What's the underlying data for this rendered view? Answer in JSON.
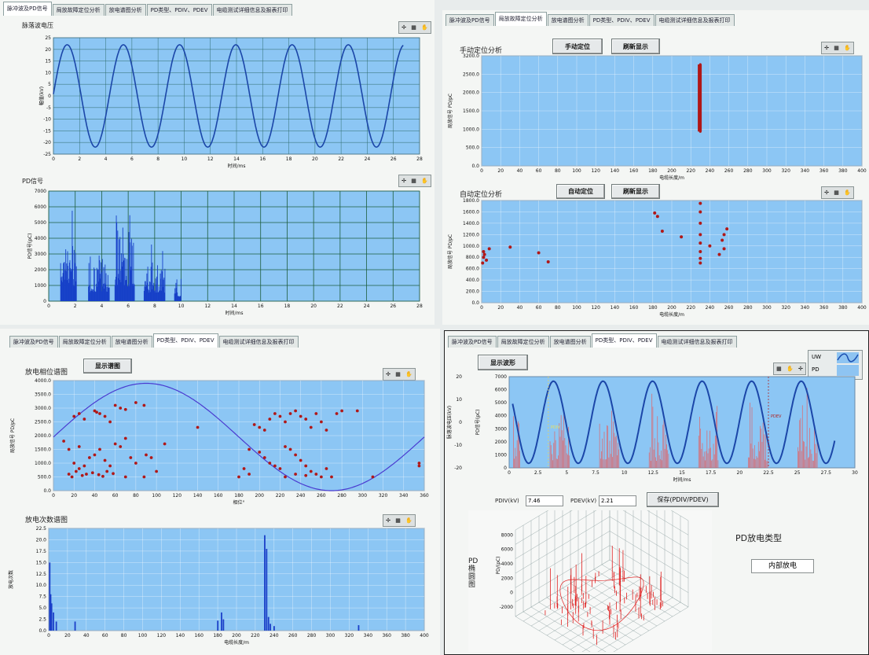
{
  "tabs": [
    "脉冲波及PD信号",
    "局放故障定位分析",
    "放电谱图分析",
    "PD类型、PDIV、PDEV",
    "电缆测试详细信息及报表打印"
  ],
  "tool_glyphs": {
    "cursor": "✢",
    "zoom": "▦",
    "hand": "✋"
  },
  "panel_tl": {
    "wave_title": "脉落波电压",
    "pd_title": "PD信号",
    "wave_ylabel": "幅值(kV)",
    "wave_xlabel": "时间/ms",
    "pd_ylabel": "PD信号(pC)",
    "pd_xlabel": "时间/ms"
  },
  "panel_tr": {
    "manual_title": "手动定位分析",
    "manual_button": "手动定位",
    "refresh_button": "刷新显示",
    "auto_title": "自动定位分析",
    "auto_button": "自动定位",
    "auto_refresh_button": "刷新显示",
    "ylabel": "局放信号 PD/pC",
    "xlabel": "电缆长度/m"
  },
  "panel_bl": {
    "phase_title": "放电相位谱图",
    "show_button": "显示谱图",
    "phase_ylabel": "局放信号 PD/pC",
    "phase_xlabel": "相位°",
    "count_title": "放电次数谱图",
    "count_ylabel": "放电次数",
    "count_xlabel": "电缆长度/m"
  },
  "panel_br": {
    "show_wave_button": "显示波形",
    "legend": [
      "UW",
      "PD"
    ],
    "ylabel_left": "脉落波电压(kV)",
    "ylabel_right": "PD信号(pC)",
    "xlabel": "时间/ms",
    "pdiv_marker": "PDIV",
    "pdev_marker": "PDEV",
    "pdiv_label": "PDIV(kV)",
    "pdiv_value": "7.46",
    "pdev_label": "PDEV(kV)",
    "pdev_value": "2.21",
    "save_button": "保存(PDIV/PDEV)",
    "pd_type_title": "PD放电类型",
    "pd_type_value": "内部放电",
    "surface_label": "PD\n椭\n圆\n图",
    "surface_zlabel": "PD/(pC)",
    "surface_ticks": [
      "8000",
      "6000",
      "4000",
      "2000",
      "0",
      "-2000"
    ]
  },
  "chart_data": [
    {
      "type": "line",
      "title": "脉落波电压",
      "xlabel": "时间/ms",
      "ylabel": "幅值(kV)",
      "xlim": [
        0,
        28
      ],
      "ylim": [
        -25,
        25
      ],
      "x_ticks": [
        "0",
        "2",
        "4",
        "6",
        "8",
        "10",
        "12",
        "14",
        "16",
        "18",
        "20",
        "22",
        "24",
        "26",
        "28"
      ],
      "y_ticks": [
        "25",
        "20",
        "15",
        "10",
        "5",
        "0",
        "-5",
        "-10",
        "-15",
        "-20",
        "-25"
      ],
      "series": [
        {
          "amplitude": 22,
          "period_ms": 4.3,
          "phase_ms": 1.05,
          "x_end": 26.8
        }
      ]
    },
    {
      "type": "bar",
      "title": "PD信号",
      "xlabel": "时间/ms",
      "ylabel": "PD信号(pC)",
      "xlim": [
        0,
        28
      ],
      "ylim": [
        0,
        7000
      ],
      "x_ticks": [
        "0",
        "2",
        "4",
        "6",
        "8",
        "10",
        "12",
        "14",
        "16",
        "18",
        "20",
        "22",
        "24",
        "26",
        "28"
      ],
      "y_ticks": [
        "7000",
        "6000",
        "5000",
        "4000",
        "3000",
        "2000",
        "1000",
        "0"
      ],
      "bursts": [
        {
          "from": 0.9,
          "to": 2.1,
          "peak": 6300
        },
        {
          "from": 3.0,
          "to": 4.6,
          "peak": 3800
        },
        {
          "from": 5.0,
          "to": 6.5,
          "peak": 6300
        },
        {
          "from": 7.2,
          "to": 8.8,
          "peak": 3600
        },
        {
          "from": 9.5,
          "to": 10.0,
          "peak": 1700
        }
      ]
    },
    {
      "type": "scatter",
      "title": "手动定位分析",
      "xlabel": "电缆长度/m",
      "ylabel": "局放信号 PD/pC",
      "xlim": [
        0,
        400
      ],
      "ylim": [
        0,
        3200
      ],
      "x_ticks": [
        "0",
        "20",
        "40",
        "60",
        "80",
        "100",
        "120",
        "140",
        "160",
        "180",
        "200",
        "220",
        "240",
        "260",
        "280",
        "300",
        "320",
        "340",
        "360",
        "380",
        "400"
      ],
      "y_ticks": [
        "3200.0",
        "2500.0",
        "2000.0",
        "1500.0",
        "1000.0",
        "500.0",
        "0.0"
      ],
      "points": [
        [
          230,
          1000
        ],
        [
          230,
          1200
        ],
        [
          230,
          1400
        ],
        [
          230,
          1600
        ],
        [
          230,
          1800
        ],
        [
          230,
          2000
        ],
        [
          230,
          2200
        ],
        [
          230,
          2400
        ],
        [
          230,
          2600
        ],
        [
          230,
          2800
        ],
        [
          230,
          2950
        ]
      ]
    },
    {
      "type": "scatter",
      "title": "自动定位分析",
      "xlabel": "电缆长度/m",
      "ylabel": "局放信号 PD/pC",
      "xlim": [
        0,
        400
      ],
      "ylim": [
        0,
        1800
      ],
      "x_ticks": [
        "0",
        "20",
        "40",
        "60",
        "80",
        "100",
        "120",
        "140",
        "160",
        "180",
        "200",
        "220",
        "240",
        "260",
        "280",
        "300",
        "320",
        "340",
        "360",
        "380",
        "400"
      ],
      "y_ticks": [
        "1800.0",
        "1600.0",
        "1400.0",
        "1200.0",
        "1000.0",
        "800.0",
        "600.0",
        "400.0",
        "200.0",
        "0.0"
      ],
      "points": [
        [
          1,
          700
        ],
        [
          2,
          800
        ],
        [
          3,
          850
        ],
        [
          2,
          900
        ],
        [
          5,
          750
        ],
        [
          8,
          950
        ],
        [
          30,
          980
        ],
        [
          60,
          880
        ],
        [
          70,
          720
        ],
        [
          182,
          1580
        ],
        [
          185,
          1520
        ],
        [
          190,
          1260
        ],
        [
          210,
          1160
        ],
        [
          230,
          700
        ],
        [
          230,
          780
        ],
        [
          230,
          900
        ],
        [
          230,
          1050
        ],
        [
          230,
          1200
        ],
        [
          230,
          1400
        ],
        [
          230,
          1600
        ],
        [
          230,
          1750
        ],
        [
          250,
          850
        ],
        [
          253,
          1100
        ],
        [
          255,
          1200
        ],
        [
          258,
          1300
        ],
        [
          255,
          950
        ],
        [
          240,
          1000
        ]
      ]
    },
    {
      "type": "scatter",
      "title": "放电相位谱图",
      "xlabel": "相位°",
      "ylabel": "局放信号 PD/pC",
      "xlim": [
        0,
        360
      ],
      "ylim": [
        0,
        4000
      ],
      "x_ticks": [
        "0",
        "20",
        "40",
        "60",
        "80",
        "100",
        "120",
        "140",
        "160",
        "180",
        "200",
        "220",
        "240",
        "260",
        "280",
        "300",
        "320",
        "340",
        "360"
      ],
      "y_ticks": [
        "4000.0",
        "3500.0",
        "3000.0",
        "2500.0",
        "2000.0",
        "1500.0",
        "1000.0",
        "500.0",
        "0.0"
      ],
      "sine": {
        "amplitude": 1950,
        "offset": 1950,
        "period_deg": 360,
        "peak_deg": 90
      },
      "points": [
        [
          20,
          2700
        ],
        [
          25,
          2800
        ],
        [
          30,
          2600
        ],
        [
          40,
          2900
        ],
        [
          42,
          2850
        ],
        [
          45,
          2800
        ],
        [
          50,
          2700
        ],
        [
          55,
          2500
        ],
        [
          60,
          3100
        ],
        [
          65,
          3000
        ],
        [
          70,
          2950
        ],
        [
          80,
          3200
        ],
        [
          88,
          3100
        ],
        [
          15,
          600
        ],
        [
          18,
          500
        ],
        [
          22,
          700
        ],
        [
          25,
          800
        ],
        [
          30,
          900
        ],
        [
          35,
          1200
        ],
        [
          40,
          1300
        ],
        [
          45,
          1500
        ],
        [
          50,
          1100
        ],
        [
          55,
          900
        ],
        [
          60,
          1700
        ],
        [
          65,
          1600
        ],
        [
          70,
          1900
        ],
        [
          75,
          1200
        ],
        [
          80,
          1000
        ],
        [
          90,
          1300
        ],
        [
          95,
          1200
        ],
        [
          100,
          700
        ],
        [
          108,
          1700
        ],
        [
          140,
          2300
        ],
        [
          15,
          1500
        ],
        [
          20,
          1000
        ],
        [
          10,
          1800
        ],
        [
          25,
          1600
        ],
        [
          28,
          550
        ],
        [
          32,
          600
        ],
        [
          38,
          650
        ],
        [
          44,
          580
        ],
        [
          48,
          520
        ],
        [
          52,
          700
        ],
        [
          58,
          620
        ],
        [
          70,
          500
        ],
        [
          88,
          500
        ],
        [
          180,
          500
        ],
        [
          190,
          600
        ],
        [
          195,
          2400
        ],
        [
          200,
          2300
        ],
        [
          205,
          2200
        ],
        [
          210,
          2600
        ],
        [
          215,
          2800
        ],
        [
          220,
          2700
        ],
        [
          225,
          2500
        ],
        [
          230,
          2800
        ],
        [
          235,
          2900
        ],
        [
          240,
          2700
        ],
        [
          245,
          2600
        ],
        [
          250,
          2300
        ],
        [
          255,
          2800
        ],
        [
          260,
          2500
        ],
        [
          265,
          2200
        ],
        [
          275,
          2800
        ],
        [
          280,
          2900
        ],
        [
          295,
          2900
        ],
        [
          200,
          1400
        ],
        [
          205,
          1200
        ],
        [
          210,
          1000
        ],
        [
          215,
          900
        ],
        [
          220,
          800
        ],
        [
          225,
          1600
        ],
        [
          230,
          1500
        ],
        [
          235,
          1300
        ],
        [
          240,
          1100
        ],
        [
          245,
          900
        ],
        [
          250,
          700
        ],
        [
          255,
          600
        ],
        [
          260,
          500
        ],
        [
          265,
          800
        ],
        [
          270,
          500
        ],
        [
          190,
          1500
        ],
        [
          185,
          800
        ],
        [
          225,
          500
        ],
        [
          235,
          600
        ],
        [
          245,
          550
        ],
        [
          310,
          500
        ],
        [
          355,
          1000
        ],
        [
          355,
          900
        ]
      ]
    },
    {
      "type": "bar",
      "title": "放电次数谱图",
      "xlabel": "电缆长度/m",
      "ylabel": "放电次数",
      "xlim": [
        0,
        400
      ],
      "ylim": [
        0,
        22.5
      ],
      "x_ticks": [
        "0",
        "20",
        "40",
        "60",
        "80",
        "100",
        "120",
        "140",
        "160",
        "180",
        "200",
        "220",
        "240",
        "260",
        "280",
        "300",
        "320",
        "340",
        "360",
        "380",
        "400"
      ],
      "y_ticks": [
        "22.5",
        "20.0",
        "17.5",
        "15.0",
        "12.5",
        "10.0",
        "7.5",
        "5.0",
        "2.5",
        "0.0"
      ],
      "bars": [
        [
          1,
          15
        ],
        [
          2,
          8
        ],
        [
          3,
          6
        ],
        [
          5,
          4
        ],
        [
          8,
          2
        ],
        [
          28,
          2
        ],
        [
          180,
          2.2
        ],
        [
          184,
          4
        ],
        [
          186,
          2.5
        ],
        [
          230,
          21
        ],
        [
          232,
          18
        ],
        [
          234,
          3
        ],
        [
          236,
          1.5
        ],
        [
          240,
          1
        ],
        [
          330,
          1.2
        ]
      ]
    },
    {
      "type": "line",
      "title": "",
      "xlabel": "时间/ms",
      "ylabel": "脉落波电压(kV)",
      "xlim": [
        0,
        30
      ],
      "ylim_left": [
        -20,
        20
      ],
      "ylim_right": [
        0,
        7000
      ],
      "x_ticks": [
        "0",
        "2.5",
        "5",
        "7.5",
        "10",
        "12.5",
        "15",
        "17.5",
        "20",
        "22.5",
        "25",
        "27.5",
        "30"
      ],
      "y_ticks_left": [
        "20",
        "10",
        "0",
        "-10",
        "-20"
      ],
      "y_ticks_right": [
        "7000",
        "6000",
        "5000",
        "4000",
        "3000",
        "2000",
        "1000",
        "0"
      ],
      "series": [
        {
          "name": "UW",
          "amplitude": 18,
          "period_ms": 4.3,
          "phase_ms": 1.05,
          "x_end": 28.3
        },
        {
          "name": "PD",
          "type": "bar",
          "peak": 6500
        }
      ]
    }
  ]
}
